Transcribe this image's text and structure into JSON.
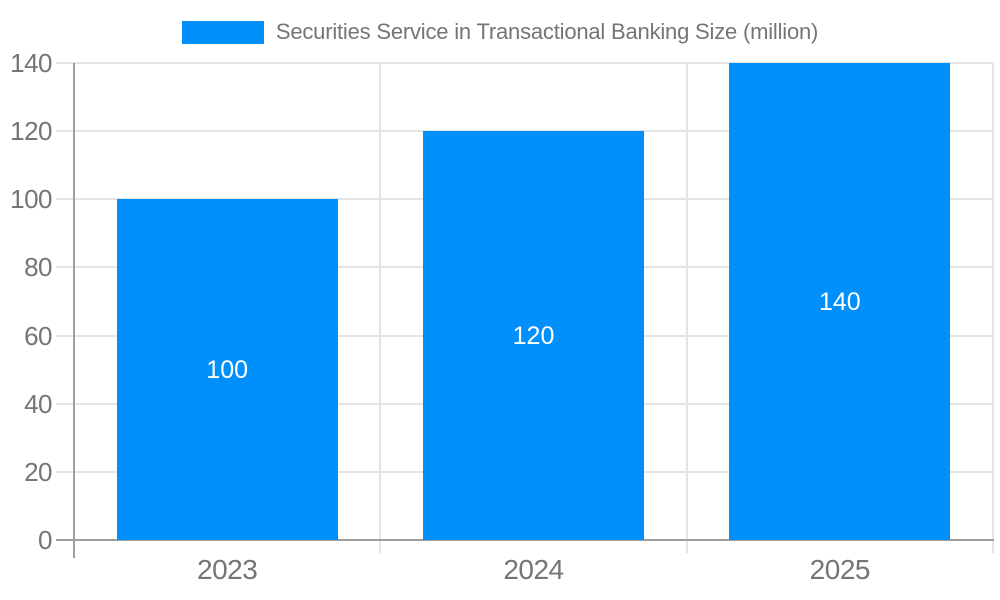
{
  "chart_data": {
    "type": "bar",
    "title": "Securities Service in Transactional Banking Size (million)",
    "legend": {
      "position": "top",
      "entries": [
        "Securities Service in Transactional Banking Size (million)"
      ]
    },
    "categories": [
      "2023",
      "2024",
      "2025"
    ],
    "values": [
      100,
      120,
      140
    ],
    "data_labels": [
      "100",
      "120",
      "140"
    ],
    "xlabel": "",
    "ylabel": "",
    "ylim": [
      0,
      140
    ],
    "yticks": [
      0,
      20,
      40,
      60,
      80,
      100,
      120,
      140
    ],
    "grid": true,
    "colors": {
      "bar": "#008FFB",
      "data_label": "#FFFFFF",
      "axis_text": "#757575",
      "gridline": "#E4E4E4",
      "axis_line": "#9E9E9E"
    }
  }
}
